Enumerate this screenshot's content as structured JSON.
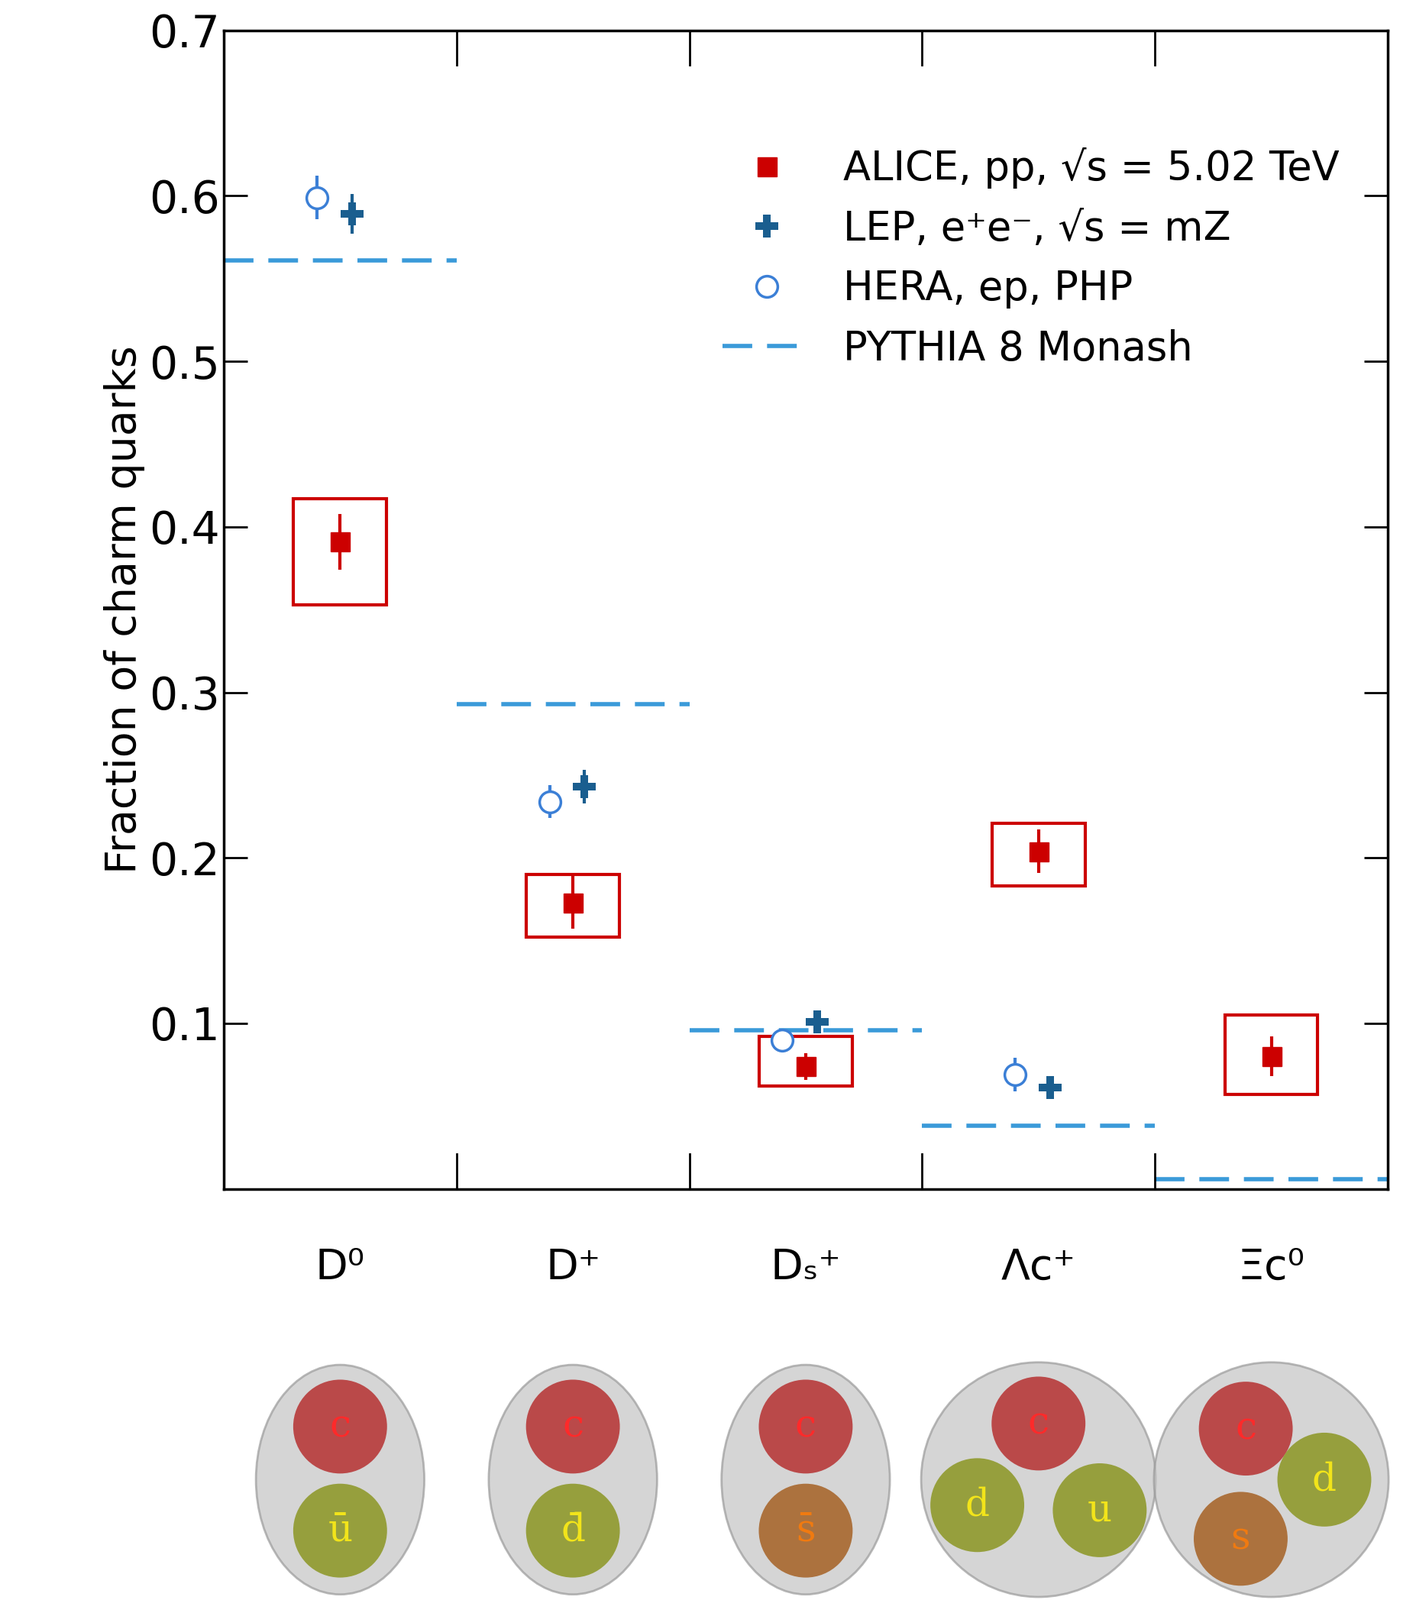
{
  "chart_data": {
    "type": "scatter",
    "categories": [
      "D⁰",
      "D⁺",
      "Dₛ⁺",
      "Λc⁺",
      "Ξc⁰"
    ],
    "quark_content": [
      [
        "c",
        "ū"
      ],
      [
        "c",
        "d̄"
      ],
      [
        "c",
        "s̄"
      ],
      [
        "c",
        "d",
        "u"
      ],
      [
        "c",
        "d",
        "s"
      ]
    ],
    "y_label": "Fraction of charm quarks",
    "ylim": [
      0,
      0.7
    ],
    "yticks": [
      0.1,
      0.2,
      0.3,
      0.4,
      0.5,
      0.6,
      0.7
    ],
    "legend": "upper right",
    "series": [
      {
        "name": "ALICE, pp, √s = 5.02 TeV",
        "color": "#cc0000",
        "marker": "square",
        "values": [
          0.391,
          0.173,
          0.074,
          0.204,
          0.08
        ],
        "errors": [
          0.017,
          0.016,
          0.008,
          0.013,
          0.012
        ],
        "syst_errors": [
          [
            0.038,
            0.026
          ],
          [
            0.021,
            0.017
          ],
          [
            0.012,
            0.018
          ],
          [
            0.021,
            0.017
          ],
          [
            0.023,
            0.025
          ]
        ]
      },
      {
        "name": "LEP, e⁺e⁻, √s = mZ",
        "color": "#1a5e8f",
        "marker": "plus",
        "values": [
          0.589,
          0.243,
          0.101,
          0.061,
          null
        ],
        "errors": [
          0.012,
          0.01,
          0.006,
          0.004,
          null
        ]
      },
      {
        "name": "HERA, ep, PHP",
        "color": "#3b7fd6",
        "marker": "circle",
        "values": [
          0.599,
          0.234,
          0.09,
          0.069,
          null
        ],
        "errors": [
          0.013,
          0.01,
          0.004,
          0.01,
          null
        ]
      },
      {
        "name": "PYTHIA 8 Monash",
        "type": "line",
        "line_style": "dashed",
        "color": "#3a9ad9",
        "values": [
          0.561,
          0.293,
          0.096,
          0.038,
          0.006
        ]
      }
    ]
  }
}
